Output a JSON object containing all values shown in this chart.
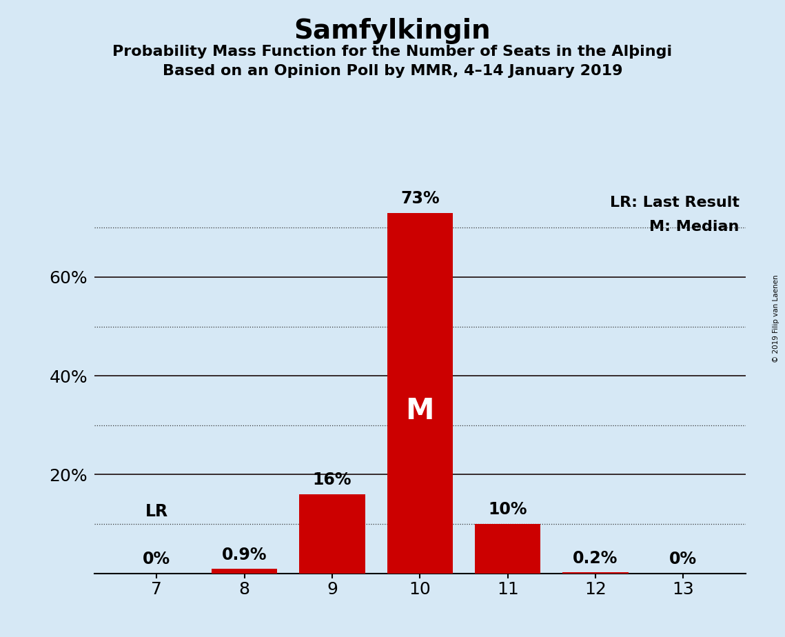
{
  "title": "Samfylkingin",
  "subtitle1": "Probability Mass Function for the Number of Seats in the Alþingi",
  "subtitle2": "Based on an Opinion Poll by MMR, 4–14 January 2019",
  "categories": [
    7,
    8,
    9,
    10,
    11,
    12,
    13
  ],
  "values": [
    0.0,
    0.9,
    16.0,
    73.0,
    10.0,
    0.2,
    0.0
  ],
  "bar_color": "#cc0000",
  "background_color": "#d6e8f5",
  "bar_labels": [
    "0%",
    "0.9%",
    "16%",
    "73%",
    "10%",
    "0.2%",
    "0%"
  ],
  "median_bar": 10,
  "lr_bar": 7,
  "lr_label": "LR",
  "median_label": "M",
  "legend_lr": "LR: Last Result",
  "legend_m": "M: Median",
  "ylim": [
    0,
    80
  ],
  "solid_lines": [
    20,
    40,
    60
  ],
  "dotted_lines": [
    10,
    30,
    50,
    70
  ],
  "copyright": "© 2019 Filip van Laenen",
  "title_fontsize": 28,
  "subtitle_fontsize": 16,
  "bar_label_fontsize": 17,
  "median_label_fontsize": 30,
  "lr_label_fontsize": 17,
  "axis_tick_fontsize": 18,
  "legend_fontsize": 16
}
